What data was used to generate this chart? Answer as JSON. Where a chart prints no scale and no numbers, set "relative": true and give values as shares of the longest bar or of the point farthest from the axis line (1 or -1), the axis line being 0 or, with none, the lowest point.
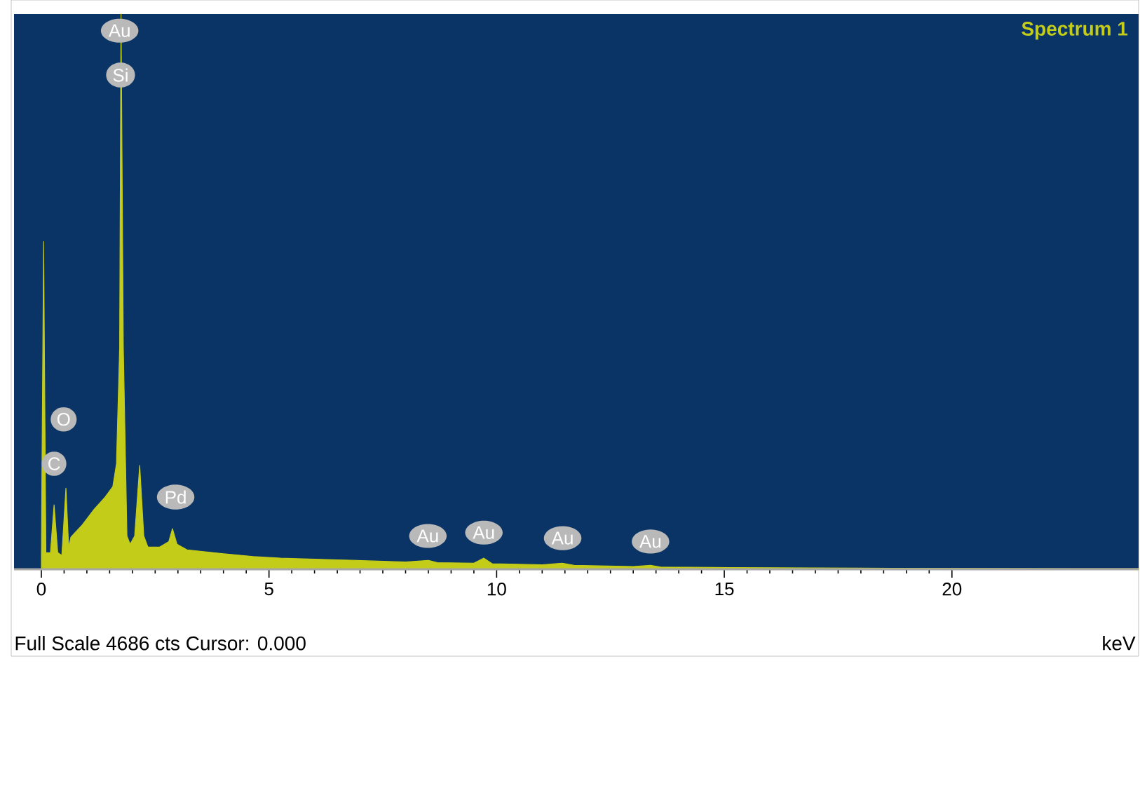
{
  "chart_data": {
    "type": "area",
    "title": "Spectrum 1",
    "xlabel": "keV",
    "relative": true,
    "color": "#c4cc1a",
    "x": [
      0.0,
      0.05,
      0.1,
      0.2,
      0.28,
      0.36,
      0.45,
      0.54,
      0.6,
      0.65,
      0.9,
      1.16,
      1.4,
      1.57,
      1.65,
      1.72,
      1.75,
      1.8,
      1.88,
      1.95,
      2.05,
      2.16,
      2.25,
      2.34,
      2.6,
      2.8,
      2.88,
      2.98,
      3.2,
      4.0,
      4.65,
      5.26,
      6.5,
      8.0,
      8.5,
      8.7,
      9.5,
      9.72,
      9.9,
      11.0,
      11.44,
      11.7,
      13.0,
      13.38,
      13.6,
      15.1,
      18.0,
      24.1
    ],
    "values": [
      0.02,
      0.59,
      0.03,
      0.03,
      0.116,
      0.03,
      0.025,
      0.146,
      0.04,
      0.058,
      0.08,
      0.108,
      0.13,
      0.149,
      0.19,
      0.4,
      1.0,
      0.4,
      0.06,
      0.045,
      0.06,
      0.187,
      0.06,
      0.04,
      0.04,
      0.05,
      0.073,
      0.045,
      0.035,
      0.028,
      0.023,
      0.02,
      0.017,
      0.013,
      0.016,
      0.012,
      0.011,
      0.02,
      0.01,
      0.008,
      0.011,
      0.007,
      0.005,
      0.007,
      0.004,
      0.003,
      0.002,
      0.001
    ],
    "xlim": [
      -0.6,
      24.1
    ],
    "xticks": [
      0,
      5,
      10,
      15,
      20
    ],
    "annotations": [
      {
        "text": "Au",
        "x": 1.72,
        "y": 0.97
      },
      {
        "text": "Si",
        "x": 1.74,
        "y": 0.89
      },
      {
        "text": "C",
        "x": 0.28,
        "y": 0.19
      },
      {
        "text": "O",
        "x": 0.49,
        "y": 0.27
      },
      {
        "text": "Pd",
        "x": 2.95,
        "y": 0.13
      },
      {
        "text": "Au",
        "x": 8.49,
        "y": 0.06
      },
      {
        "text": "Au",
        "x": 9.72,
        "y": 0.066
      },
      {
        "text": "Au",
        "x": 11.45,
        "y": 0.056
      },
      {
        "text": "Au",
        "x": 13.38,
        "y": 0.05
      },
      "Full Scale 4686 cts Cursor: 0.000"
    ]
  }
}
